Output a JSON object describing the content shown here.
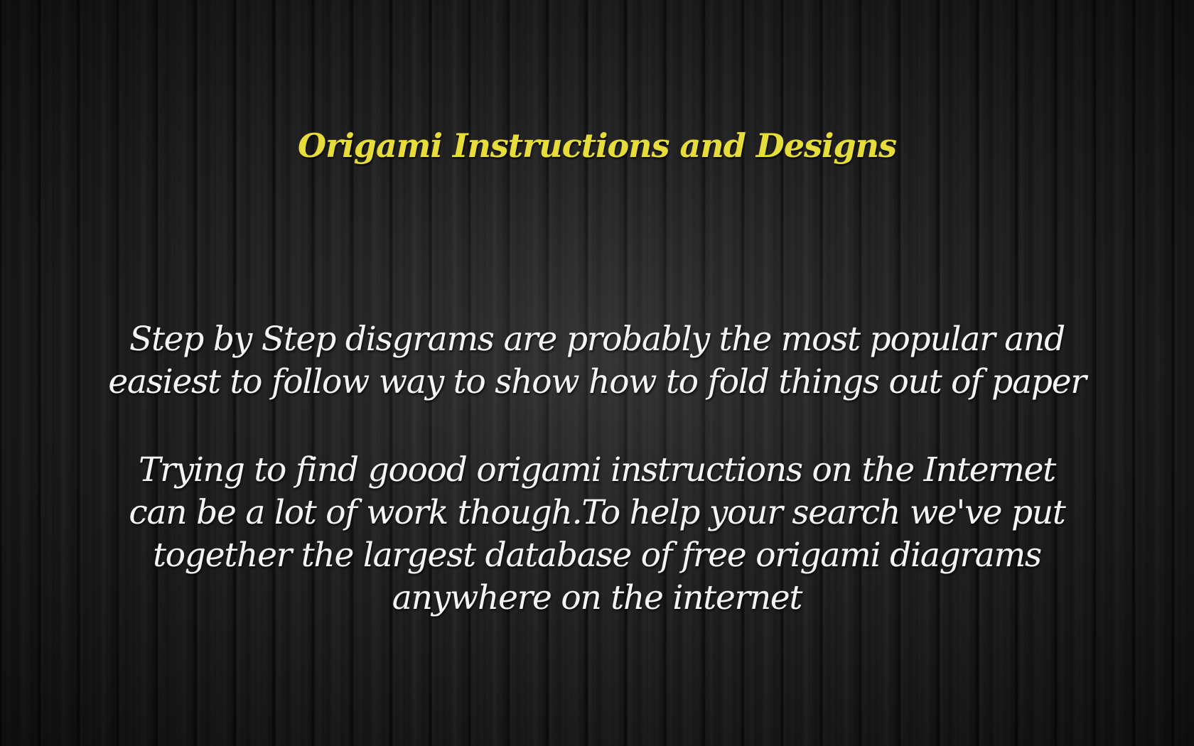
{
  "title": "Origami Instructions and Designs",
  "paragraph_1": [
    "Step by Step disgrams are probably the most popular and",
    "easiest to follow way  to show how to fold things out of paper"
  ],
  "paragraph_2": [
    "Trying to find goood origami instructions on the Internet",
    "can be a lot of work though.To help your search we've put",
    "together the largest database of free origami diagrams",
    "anywhere on the internet"
  ],
  "colors": {
    "title": "#e6dc3a",
    "body_text": "#f4f4f4",
    "background": "#1a1a1a"
  }
}
